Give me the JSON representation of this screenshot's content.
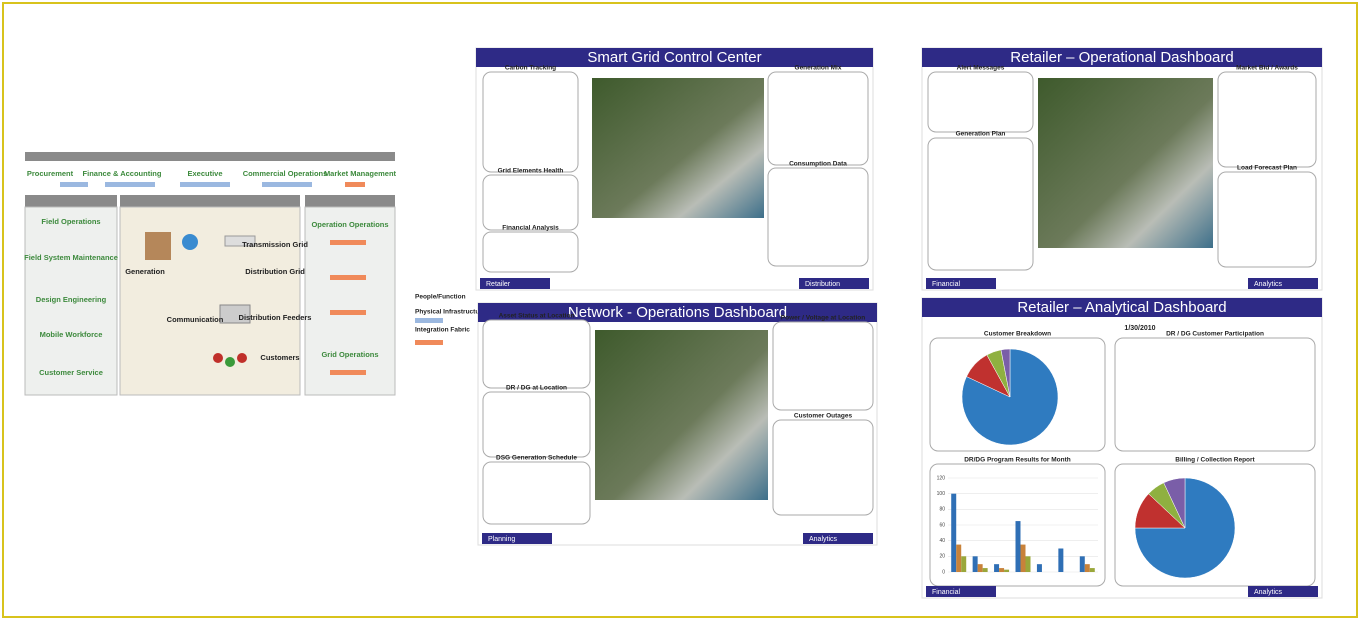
{
  "architecture": {
    "top_apps": [
      "Procurement",
      "Finance & Accounting",
      "Executive",
      "Commercial Operations",
      "Market Management"
    ],
    "left_column": [
      "Field Operations",
      "Field System Maintenance",
      "Design Engineering",
      "Mobile Workforce",
      "Customer Service"
    ],
    "middle": [
      "Generation",
      "Transmission Grid",
      "Distribution Grid",
      "Communication",
      "Distribution Feeders",
      "Customers"
    ],
    "right_column": [
      "Operation Operations",
      "Grid Operations"
    ]
  },
  "layers": [
    "People/Function",
    "Physical Infrastructure",
    "Integration Fabric"
  ],
  "dashboards": [
    {
      "title": "Smart Grid Control Center",
      "panels": [
        "Carbon Tracking",
        "Grid Elements Health",
        "Financial Analysis",
        "Generation Mix",
        "Consumption Data"
      ],
      "tabs": [
        "Retailer",
        "Distribution"
      ]
    },
    {
      "title": "Retailer – Operational Dashboard",
      "panels": [
        "Alert Messages",
        "Generation Plan",
        "Market Bid / Awards",
        "Load Forecast Plan"
      ],
      "tabs": [
        "Financial",
        "Analytics"
      ]
    },
    {
      "title": "Network - Operations Dashboard",
      "panels": [
        "Asset Status at Location",
        "DR / DG at Location",
        "DSG Generation Schedule",
        "Power / Voltage at Location",
        "Customer Outages"
      ],
      "tabs": [
        "Planning",
        "Analytics"
      ]
    },
    {
      "title": "Retailer – Analytical Dashboard",
      "date": "1/30/2010",
      "panels": [
        "Customer Breakdown",
        "DR / DG Customer Participation",
        "DR/DG Program Results for Month",
        "Billing / Collection Report"
      ],
      "tabs": [
        "Financial",
        "Analytics"
      ]
    }
  ],
  "chart_data": [
    {
      "type": "pie",
      "values": [
        82,
        10,
        5,
        3
      ],
      "colors": [
        "#2f7bc0",
        "#c0312f",
        "#8fb040",
        "#7a5ea8"
      ]
    },
    {
      "type": "bar",
      "categories": [
        null,
        null,
        null,
        null,
        null,
        null,
        null
      ],
      "series": [
        {
          "color": "#2f6fb5",
          "values": [
            100,
            20,
            10,
            65,
            10,
            30,
            20
          ]
        },
        {
          "color": "#c8823a",
          "values": [
            35,
            10,
            5,
            35,
            0,
            0,
            10
          ]
        },
        {
          "color": "#9aa73a",
          "values": [
            20,
            5,
            3,
            20,
            0,
            0,
            5
          ]
        }
      ],
      "ylim": [
        0,
        120
      ],
      "yticks": [
        0,
        20,
        40,
        60,
        80,
        100,
        120
      ]
    },
    {
      "type": "pie",
      "values": [
        75,
        12,
        6,
        7
      ],
      "colors": [
        "#2f7bc0",
        "#c0312f",
        "#8fb040",
        "#7a5ea8"
      ]
    }
  ]
}
